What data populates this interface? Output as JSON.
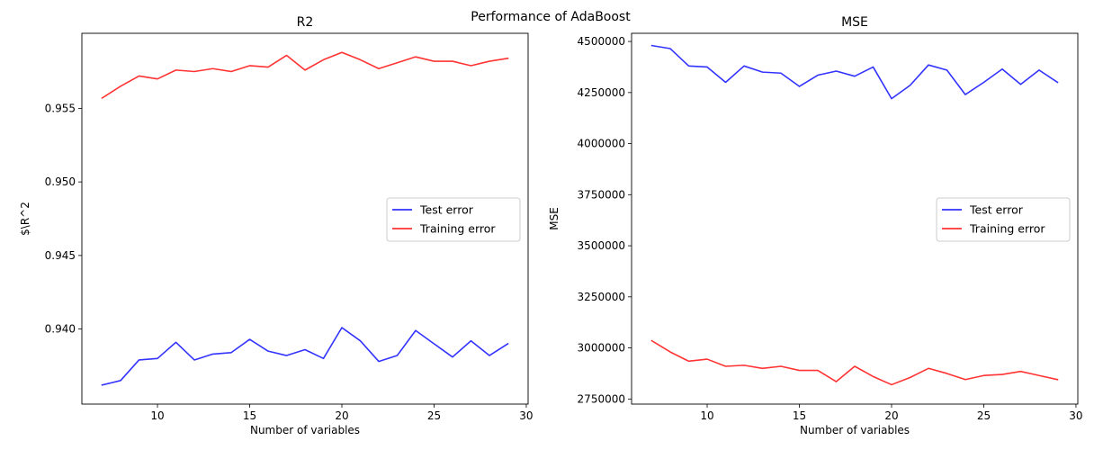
{
  "suptitle": "Performance of AdaBoost",
  "colors": {
    "test": "#3333ff",
    "train": "#ff3333"
  },
  "chart_data": [
    {
      "type": "line",
      "title": "R2",
      "xlabel": "Number of variables",
      "ylabel": "$\\R^2",
      "xlim": [
        5.9,
        30.1
      ],
      "ylim": [
        0.9349,
        0.9601
      ],
      "xticks": [
        10,
        15,
        20,
        25,
        30
      ],
      "yticks": [
        0.94,
        0.945,
        0.95,
        0.955
      ],
      "ytick_labels": [
        "0.940",
        "0.945",
        "0.950",
        "0.955"
      ],
      "legend": {
        "position": "center-right",
        "entries": [
          "Test error",
          "Training error"
        ]
      },
      "x": [
        7,
        8,
        9,
        10,
        11,
        12,
        13,
        14,
        15,
        16,
        17,
        18,
        19,
        20,
        21,
        22,
        23,
        24,
        25,
        26,
        27,
        28,
        29
      ],
      "series": [
        {
          "name": "Test error",
          "color": "#3333ff",
          "values": [
            0.9362,
            0.9365,
            0.9379,
            0.938,
            0.9391,
            0.9379,
            0.9383,
            0.9384,
            0.9393,
            0.9385,
            0.9382,
            0.9386,
            0.938,
            0.9401,
            0.9392,
            0.9378,
            0.9382,
            0.9399,
            0.939,
            0.9381,
            0.9392,
            0.9382,
            0.939
          ]
        },
        {
          "name": "Training error",
          "color": "#ff3333",
          "values": [
            0.9557,
            0.9565,
            0.9572,
            0.957,
            0.9576,
            0.9575,
            0.9577,
            0.9575,
            0.9579,
            0.9578,
            0.9586,
            0.9576,
            0.9583,
            0.9588,
            0.9583,
            0.9577,
            0.9581,
            0.9585,
            0.9582,
            0.9582,
            0.9579,
            0.9582,
            0.9584
          ]
        }
      ]
    },
    {
      "type": "line",
      "title": "MSE",
      "xlabel": "Number of variables",
      "ylabel": "MSE",
      "xlim": [
        5.9,
        30.1
      ],
      "ylim": [
        2725000,
        4540000
      ],
      "xticks": [
        10,
        15,
        20,
        25,
        30
      ],
      "yticks": [
        2750000,
        3000000,
        3250000,
        3500000,
        3750000,
        4000000,
        4250000,
        4500000
      ],
      "ytick_labels": [
        "2750000",
        "3000000",
        "3250000",
        "3500000",
        "3750000",
        "4000000",
        "4250000",
        "4500000"
      ],
      "legend": {
        "position": "center-right",
        "entries": [
          "Test error",
          "Training error"
        ]
      },
      "x": [
        7,
        8,
        9,
        10,
        11,
        12,
        13,
        14,
        15,
        16,
        17,
        18,
        19,
        20,
        21,
        22,
        23,
        24,
        25,
        26,
        27,
        28,
        29
      ],
      "series": [
        {
          "name": "Test error",
          "color": "#3333ff",
          "values": [
            4480000,
            4465000,
            4380000,
            4375000,
            4300000,
            4380000,
            4350000,
            4345000,
            4280000,
            4335000,
            4355000,
            4330000,
            4375000,
            4220000,
            4285000,
            4385000,
            4360000,
            4240000,
            4300000,
            4365000,
            4290000,
            4360000,
            4300000
          ]
        },
        {
          "name": "Training error",
          "color": "#ff3333",
          "values": [
            3035000,
            2980000,
            2935000,
            2945000,
            2910000,
            2915000,
            2900000,
            2910000,
            2890000,
            2890000,
            2835000,
            2910000,
            2860000,
            2820000,
            2855000,
            2900000,
            2875000,
            2845000,
            2865000,
            2870000,
            2885000,
            2865000,
            2845000
          ]
        }
      ]
    }
  ]
}
